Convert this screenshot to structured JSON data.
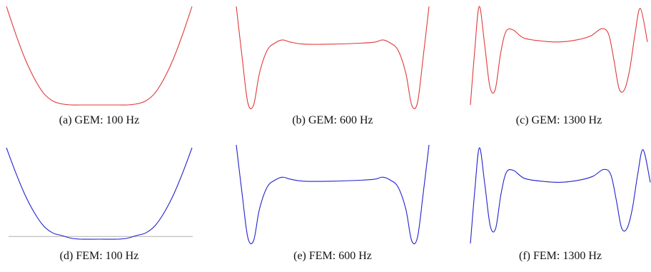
{
  "figure": {
    "rows": [
      {
        "method": "GEM",
        "line_color": "#e03a3a"
      },
      {
        "method": "FEM",
        "line_color": "#2222cc",
        "baseline_color": "#b0b0b0"
      }
    ]
  },
  "chart_data": [
    {
      "type": "line",
      "caption": "(a) GEM: 100 Hz",
      "series": [
        {
          "color": "#e03a3a",
          "x": [
            0,
            0.05,
            0.1,
            0.15,
            0.2,
            0.25,
            0.3,
            0.35,
            0.4,
            0.5,
            0.6,
            0.65,
            0.7,
            0.75,
            0.8,
            0.85,
            0.9,
            0.95,
            1
          ],
          "y": [
            1.0,
            0.72,
            0.47,
            0.27,
            0.12,
            0.04,
            0.01,
            0.0,
            0.0,
            0.0,
            0.0,
            0.0,
            0.01,
            0.04,
            0.12,
            0.27,
            0.47,
            0.72,
            1.0
          ]
        }
      ]
    },
    {
      "type": "line",
      "caption": "(b) GEM: 600 Hz",
      "series": [
        {
          "color": "#e03a3a",
          "x": [
            0,
            0.03,
            0.06,
            0.09,
            0.12,
            0.16,
            0.2,
            0.24,
            0.28,
            0.35,
            0.5,
            0.65,
            0.72,
            0.76,
            0.8,
            0.84,
            0.88,
            0.91,
            0.94,
            0.97,
            1
          ],
          "y": [
            1.0,
            0.52,
            0.08,
            0.06,
            0.36,
            0.58,
            0.65,
            0.68,
            0.66,
            0.64,
            0.64,
            0.65,
            0.66,
            0.68,
            0.65,
            0.58,
            0.36,
            0.06,
            0.08,
            0.52,
            1.0
          ]
        }
      ]
    },
    {
      "type": "line",
      "caption": "(c) GEM: 1300 Hz",
      "series": [
        {
          "color": "#e03a3a",
          "x": [
            0,
            0.025,
            0.05,
            0.08,
            0.11,
            0.14,
            0.17,
            0.2,
            0.24,
            0.3,
            0.4,
            0.5,
            0.6,
            0.68,
            0.74,
            0.78,
            0.81,
            0.84,
            0.87,
            0.9,
            0.93,
            0.96,
            1
          ],
          "y": [
            0.0,
            0.55,
            0.97,
            0.6,
            0.18,
            0.15,
            0.5,
            0.72,
            0.74,
            0.66,
            0.63,
            0.62,
            0.64,
            0.68,
            0.75,
            0.7,
            0.45,
            0.16,
            0.15,
            0.35,
            0.7,
            0.95,
            0.62
          ]
        }
      ]
    },
    {
      "type": "line",
      "caption": "(d) FEM: 100 Hz",
      "series": [
        {
          "color": "#2222cc",
          "x": [
            0,
            0.05,
            0.1,
            0.15,
            0.2,
            0.25,
            0.3,
            0.35,
            0.4,
            0.5,
            0.6,
            0.65,
            0.7,
            0.75,
            0.8,
            0.85,
            0.9,
            0.95,
            1
          ],
          "y": [
            1.0,
            0.72,
            0.47,
            0.27,
            0.12,
            0.04,
            0.01,
            -0.02,
            -0.03,
            -0.03,
            -0.03,
            -0.02,
            0.01,
            0.04,
            0.12,
            0.27,
            0.47,
            0.72,
            1.0
          ]
        }
      ],
      "baseline_y": 0.0
    },
    {
      "type": "line",
      "caption": "(e) FEM: 600 Hz",
      "series": [
        {
          "color": "#2222cc",
          "x": [
            0,
            0.03,
            0.06,
            0.09,
            0.12,
            0.16,
            0.2,
            0.24,
            0.28,
            0.35,
            0.5,
            0.65,
            0.72,
            0.76,
            0.8,
            0.84,
            0.88,
            0.91,
            0.94,
            0.97,
            1
          ],
          "y": [
            1.0,
            0.52,
            0.08,
            0.05,
            0.36,
            0.58,
            0.65,
            0.68,
            0.66,
            0.64,
            0.64,
            0.65,
            0.66,
            0.68,
            0.65,
            0.58,
            0.36,
            0.05,
            0.08,
            0.52,
            1.0
          ]
        }
      ]
    },
    {
      "type": "line",
      "caption": "(f) FEM: 1300 Hz",
      "series": [
        {
          "color": "#2222cc",
          "x": [
            0,
            0.025,
            0.05,
            0.08,
            0.11,
            0.14,
            0.17,
            0.2,
            0.24,
            0.3,
            0.4,
            0.5,
            0.6,
            0.68,
            0.74,
            0.78,
            0.81,
            0.84,
            0.87,
            0.9,
            0.93,
            0.96,
            1
          ],
          "y": [
            0.0,
            0.55,
            0.97,
            0.6,
            0.18,
            0.15,
            0.5,
            0.72,
            0.74,
            0.66,
            0.63,
            0.62,
            0.64,
            0.68,
            0.75,
            0.7,
            0.45,
            0.16,
            0.15,
            0.35,
            0.7,
            0.95,
            0.62
          ]
        }
      ]
    }
  ]
}
